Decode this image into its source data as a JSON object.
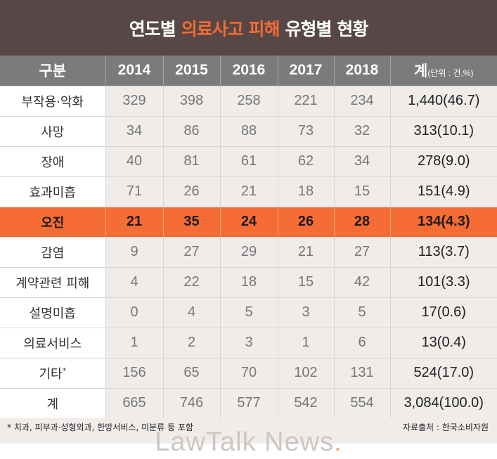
{
  "title": {
    "pre": "연도별",
    "highlight": "의료사고 피해",
    "post": "유형별 현황"
  },
  "colors": {
    "title_bg": "#574746",
    "accent": "#f56d35",
    "header_bg": "#7b7b7b"
  },
  "table": {
    "headers": [
      "구분",
      "2014",
      "2015",
      "2016",
      "2017",
      "2018",
      "계"
    ],
    "unit": "(단위 : 건,%)",
    "rows": [
      {
        "label": "부작용·악화",
        "values": [
          "329",
          "398",
          "258",
          "221",
          "234"
        ],
        "total": "1,440(46.7)"
      },
      {
        "label": "사망",
        "values": [
          "34",
          "86",
          "88",
          "73",
          "32"
        ],
        "total": "313(10.1)"
      },
      {
        "label": "장애",
        "values": [
          "40",
          "81",
          "61",
          "62",
          "34"
        ],
        "total": "278(9.0)"
      },
      {
        "label": "효과미흡",
        "values": [
          "71",
          "26",
          "21",
          "18",
          "15"
        ],
        "total": "151(4.9)"
      },
      {
        "label": "오진",
        "values": [
          "21",
          "35",
          "24",
          "26",
          "28"
        ],
        "total": "134(4.3)",
        "highlighted": true
      },
      {
        "label": "감염",
        "values": [
          "9",
          "27",
          "29",
          "21",
          "27"
        ],
        "total": "113(3.7)"
      },
      {
        "label": "계약관련 피해",
        "values": [
          "4",
          "22",
          "18",
          "15",
          "42"
        ],
        "total": "101(3.3)"
      },
      {
        "label": "설명미흡",
        "values": [
          "0",
          "4",
          "5",
          "3",
          "5"
        ],
        "total": "17(0.6)"
      },
      {
        "label": "의료서비스",
        "values": [
          "1",
          "2",
          "3",
          "1",
          "6"
        ],
        "total": "13(0.4)"
      },
      {
        "label": "기타",
        "mark": "*",
        "values": [
          "156",
          "65",
          "70",
          "102",
          "131"
        ],
        "total": "524(17.0)"
      },
      {
        "label": "계",
        "values": [
          "665",
          "746",
          "577",
          "542",
          "554"
        ],
        "total": "3,084(100.0)"
      }
    ]
  },
  "footer": {
    "note": "* 치과, 피부과·성형외과, 한방서비스, 미분류 등 포함",
    "source": "자료출처 : 한국소비자원"
  },
  "watermark": {
    "text": "LawTalk News",
    "dot": "."
  }
}
